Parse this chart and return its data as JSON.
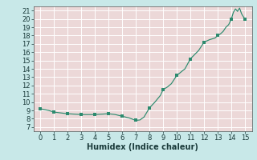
{
  "x": [
    0,
    0.3,
    0.6,
    1,
    1.5,
    2,
    2.5,
    3,
    3.5,
    4,
    4.5,
    5,
    5.5,
    6,
    6.5,
    7,
    7.3,
    7.6,
    8,
    8.4,
    8.8,
    9,
    9.3,
    9.6,
    10,
    10.3,
    10.6,
    11,
    11.3,
    11.6,
    12,
    12.2,
    12.4,
    12.6,
    12.8,
    13,
    13.2,
    13.4,
    13.6,
    13.8,
    14,
    14.15,
    14.3,
    14.45,
    14.6,
    14.75,
    14.9,
    15
  ],
  "y": [
    9.2,
    9.1,
    9.0,
    8.8,
    8.7,
    8.6,
    8.55,
    8.5,
    8.5,
    8.5,
    8.55,
    8.6,
    8.5,
    8.3,
    8.1,
    7.8,
    7.85,
    8.2,
    9.3,
    10.0,
    10.8,
    11.5,
    11.8,
    12.2,
    13.2,
    13.6,
    14.0,
    15.2,
    15.7,
    16.2,
    17.2,
    17.35,
    17.5,
    17.6,
    17.7,
    18.0,
    18.2,
    18.5,
    19.0,
    19.3,
    20.0,
    20.8,
    21.2,
    20.9,
    21.3,
    20.6,
    20.2,
    20.0
  ],
  "markers_x": [
    0,
    1,
    2,
    3,
    4,
    5,
    6,
    7,
    8,
    9,
    10,
    11,
    12,
    13,
    14,
    15
  ],
  "markers_y": [
    9.2,
    8.8,
    8.6,
    8.5,
    8.5,
    8.6,
    8.3,
    7.8,
    9.3,
    11.5,
    13.2,
    15.2,
    17.2,
    18.0,
    20.0,
    20.0
  ],
  "line_color": "#2d8b6f",
  "marker_color": "#2d8b6f",
  "plot_bg_color": "#ecd8d8",
  "fig_bg_color": "#c8e8e8",
  "grid_color": "#ffffff",
  "xlabel": "Humidex (Indice chaleur)",
  "xlim": [
    -0.5,
    15.5
  ],
  "ylim": [
    6.5,
    21.5
  ],
  "xticks": [
    0,
    1,
    2,
    3,
    4,
    5,
    6,
    7,
    8,
    9,
    10,
    11,
    12,
    13,
    14,
    15
  ],
  "yticks": [
    7,
    8,
    9,
    10,
    11,
    12,
    13,
    14,
    15,
    16,
    17,
    18,
    19,
    20,
    21
  ],
  "xlabel_fontsize": 7,
  "tick_fontsize": 6
}
